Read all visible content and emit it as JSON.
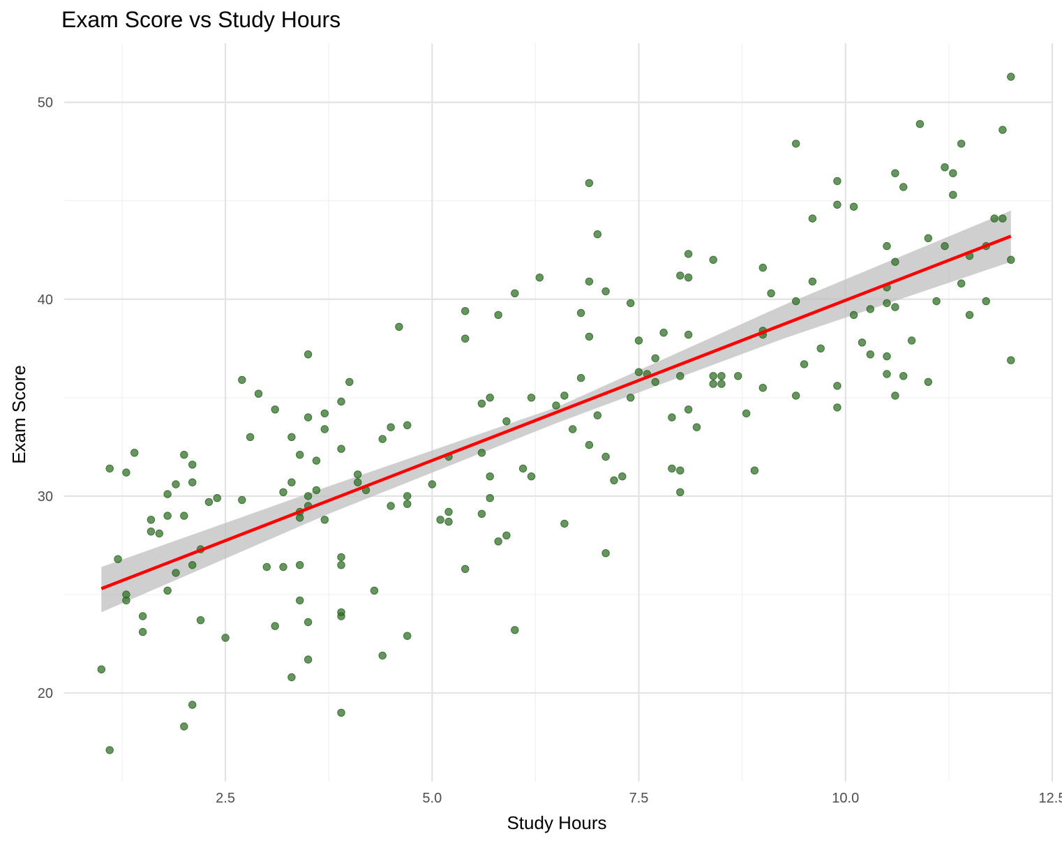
{
  "chart_data": {
    "type": "scatter",
    "title": "Exam Score vs Study Hours",
    "xlabel": "Study Hours",
    "ylabel": "Exam Score",
    "xlim": [
      0.55,
      12.5
    ],
    "ylim": [
      15.5,
      53
    ],
    "x_ticks": [
      2.5,
      5.0,
      7.5,
      10.0,
      12.5
    ],
    "x_tick_labels": [
      "2.5",
      "5.0",
      "7.5",
      "10.0",
      "12.5"
    ],
    "y_ticks": [
      20,
      30,
      40,
      50
    ],
    "y_tick_labels": [
      "20",
      "30",
      "40",
      "50"
    ],
    "grid": true,
    "point_color": "#2e6b24",
    "line_color": "#ff0000",
    "band_color": "#bfbfbf",
    "points": [
      [
        1.0,
        21.2
      ],
      [
        1.1,
        17.1
      ],
      [
        1.1,
        31.4
      ],
      [
        1.2,
        26.8
      ],
      [
        1.3,
        31.2
      ],
      [
        1.3,
        25.0
      ],
      [
        1.3,
        24.7
      ],
      [
        1.4,
        32.2
      ],
      [
        1.5,
        23.9
      ],
      [
        1.5,
        23.1
      ],
      [
        1.6,
        28.8
      ],
      [
        1.6,
        28.2
      ],
      [
        1.7,
        28.1
      ],
      [
        1.8,
        30.1
      ],
      [
        1.8,
        29.0
      ],
      [
        1.8,
        25.2
      ],
      [
        1.9,
        30.6
      ],
      [
        1.9,
        26.1
      ],
      [
        2.0,
        32.1
      ],
      [
        2.0,
        29.0
      ],
      [
        2.0,
        18.3
      ],
      [
        2.1,
        31.6
      ],
      [
        2.1,
        30.7
      ],
      [
        2.1,
        26.5
      ],
      [
        2.1,
        19.4
      ],
      [
        2.2,
        27.3
      ],
      [
        2.2,
        23.7
      ],
      [
        2.3,
        29.7
      ],
      [
        2.4,
        29.9
      ],
      [
        2.5,
        22.8
      ],
      [
        2.7,
        35.9
      ],
      [
        2.7,
        29.8
      ],
      [
        2.8,
        33.0
      ],
      [
        2.9,
        35.2
      ],
      [
        3.0,
        26.4
      ],
      [
        3.1,
        34.4
      ],
      [
        3.1,
        23.4
      ],
      [
        3.2,
        30.2
      ],
      [
        3.2,
        26.4
      ],
      [
        3.3,
        33.0
      ],
      [
        3.3,
        30.7
      ],
      [
        3.3,
        20.8
      ],
      [
        3.4,
        32.1
      ],
      [
        3.4,
        29.2
      ],
      [
        3.4,
        28.9
      ],
      [
        3.4,
        26.5
      ],
      [
        3.4,
        24.7
      ],
      [
        3.5,
        37.2
      ],
      [
        3.5,
        34.0
      ],
      [
        3.5,
        30.0
      ],
      [
        3.5,
        29.5
      ],
      [
        3.5,
        23.6
      ],
      [
        3.5,
        21.7
      ],
      [
        3.6,
        31.8
      ],
      [
        3.6,
        30.3
      ],
      [
        3.7,
        34.2
      ],
      [
        3.7,
        33.4
      ],
      [
        3.7,
        28.8
      ],
      [
        3.9,
        34.8
      ],
      [
        3.9,
        32.4
      ],
      [
        3.9,
        26.9
      ],
      [
        3.9,
        26.5
      ],
      [
        3.9,
        24.1
      ],
      [
        3.9,
        23.9
      ],
      [
        3.9,
        19.0
      ],
      [
        4.0,
        35.8
      ],
      [
        4.1,
        31.1
      ],
      [
        4.1,
        30.7
      ],
      [
        4.2,
        30.3
      ],
      [
        4.3,
        25.2
      ],
      [
        4.4,
        32.9
      ],
      [
        4.4,
        21.9
      ],
      [
        4.5,
        33.5
      ],
      [
        4.5,
        29.5
      ],
      [
        4.6,
        38.6
      ],
      [
        4.7,
        33.6
      ],
      [
        4.7,
        30.0
      ],
      [
        4.7,
        29.6
      ],
      [
        4.7,
        22.9
      ],
      [
        5.0,
        30.6
      ],
      [
        5.1,
        28.8
      ],
      [
        5.2,
        32.0
      ],
      [
        5.2,
        29.2
      ],
      [
        5.2,
        28.7
      ],
      [
        5.4,
        39.4
      ],
      [
        5.4,
        38.0
      ],
      [
        5.4,
        26.3
      ],
      [
        5.6,
        34.7
      ],
      [
        5.6,
        32.2
      ],
      [
        5.6,
        29.1
      ],
      [
        5.7,
        35.0
      ],
      [
        5.7,
        31.0
      ],
      [
        5.7,
        29.9
      ],
      [
        5.8,
        39.2
      ],
      [
        5.8,
        27.7
      ],
      [
        5.9,
        33.8
      ],
      [
        5.9,
        28.0
      ],
      [
        6.0,
        40.3
      ],
      [
        6.0,
        23.2
      ],
      [
        6.1,
        31.4
      ],
      [
        6.2,
        35.0
      ],
      [
        6.2,
        31.0
      ],
      [
        6.3,
        41.1
      ],
      [
        6.5,
        34.6
      ],
      [
        6.6,
        35.1
      ],
      [
        6.6,
        28.6
      ],
      [
        6.7,
        33.4
      ],
      [
        6.8,
        39.3
      ],
      [
        6.8,
        36.0
      ],
      [
        6.9,
        45.9
      ],
      [
        6.9,
        40.9
      ],
      [
        6.9,
        38.1
      ],
      [
        6.9,
        32.6
      ],
      [
        7.0,
        43.3
      ],
      [
        7.0,
        34.1
      ],
      [
        7.1,
        40.4
      ],
      [
        7.1,
        32.0
      ],
      [
        7.1,
        27.1
      ],
      [
        7.2,
        30.8
      ],
      [
        7.3,
        31.0
      ],
      [
        7.4,
        39.8
      ],
      [
        7.4,
        35.0
      ],
      [
        7.5,
        37.9
      ],
      [
        7.5,
        36.3
      ],
      [
        7.6,
        36.2
      ],
      [
        7.7,
        37.0
      ],
      [
        7.7,
        35.8
      ],
      [
        7.8,
        38.3
      ],
      [
        7.9,
        34.0
      ],
      [
        7.9,
        31.4
      ],
      [
        8.0,
        41.2
      ],
      [
        8.0,
        36.1
      ],
      [
        8.0,
        31.3
      ],
      [
        8.0,
        30.2
      ],
      [
        8.1,
        42.3
      ],
      [
        8.1,
        41.1
      ],
      [
        8.1,
        38.2
      ],
      [
        8.1,
        34.4
      ],
      [
        8.2,
        33.5
      ],
      [
        8.4,
        42.0
      ],
      [
        8.4,
        36.1
      ],
      [
        8.4,
        35.7
      ],
      [
        8.5,
        36.1
      ],
      [
        8.5,
        35.7
      ],
      [
        8.7,
        36.1
      ],
      [
        8.8,
        34.2
      ],
      [
        8.9,
        31.3
      ],
      [
        9.0,
        41.6
      ],
      [
        9.0,
        38.4
      ],
      [
        9.0,
        38.2
      ],
      [
        9.0,
        35.5
      ],
      [
        9.1,
        40.3
      ],
      [
        9.4,
        47.9
      ],
      [
        9.4,
        39.9
      ],
      [
        9.4,
        35.1
      ],
      [
        9.5,
        36.7
      ],
      [
        9.6,
        44.1
      ],
      [
        9.6,
        40.9
      ],
      [
        9.7,
        37.5
      ],
      [
        9.9,
        46.0
      ],
      [
        9.9,
        44.8
      ],
      [
        9.9,
        35.6
      ],
      [
        9.9,
        34.5
      ],
      [
        10.1,
        44.7
      ],
      [
        10.1,
        39.2
      ],
      [
        10.2,
        37.8
      ],
      [
        10.3,
        39.5
      ],
      [
        10.3,
        37.2
      ],
      [
        10.5,
        42.7
      ],
      [
        10.5,
        40.6
      ],
      [
        10.5,
        39.8
      ],
      [
        10.5,
        37.1
      ],
      [
        10.5,
        36.2
      ],
      [
        10.6,
        46.4
      ],
      [
        10.6,
        41.9
      ],
      [
        10.6,
        39.6
      ],
      [
        10.6,
        35.1
      ],
      [
        10.7,
        45.7
      ],
      [
        10.7,
        36.1
      ],
      [
        10.8,
        37.9
      ],
      [
        10.9,
        48.9
      ],
      [
        11.0,
        43.1
      ],
      [
        11.0,
        35.8
      ],
      [
        11.1,
        39.9
      ],
      [
        11.2,
        46.7
      ],
      [
        11.2,
        42.7
      ],
      [
        11.3,
        46.4
      ],
      [
        11.3,
        45.3
      ],
      [
        11.4,
        47.9
      ],
      [
        11.4,
        40.8
      ],
      [
        11.5,
        42.2
      ],
      [
        11.5,
        39.2
      ],
      [
        11.7,
        42.7
      ],
      [
        11.7,
        39.9
      ],
      [
        11.8,
        44.1
      ],
      [
        11.9,
        48.6
      ],
      [
        11.9,
        44.1
      ],
      [
        12.0,
        51.3
      ],
      [
        12.0,
        42.0
      ],
      [
        12.0,
        36.9
      ]
    ],
    "regression_line": {
      "x": [
        1.0,
        12.0
      ],
      "y": [
        25.3,
        43.2
      ]
    },
    "confidence_band": {
      "x": [
        1.0,
        3.75,
        6.5,
        9.25,
        12.0
      ],
      "lower": [
        24.1,
        29.1,
        33.7,
        38.0,
        41.9
      ],
      "upper": [
        26.4,
        30.5,
        34.5,
        39.7,
        44.5
      ]
    }
  }
}
